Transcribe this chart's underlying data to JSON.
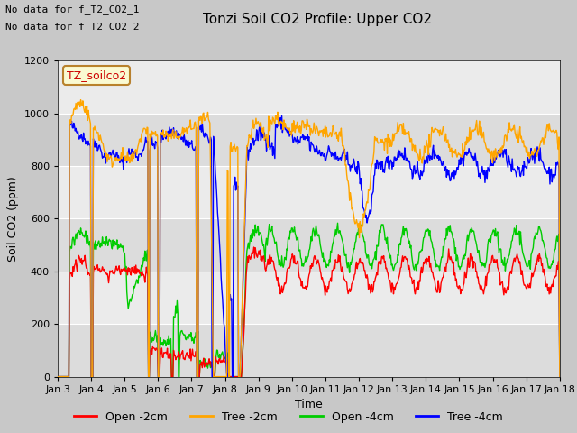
{
  "title": "Tonzi Soil CO2 Profile: Upper CO2",
  "xlabel": "Time",
  "ylabel": "Soil CO2 (ppm)",
  "ylim": [
    0,
    1200
  ],
  "legend_label": "TZ_soilco2",
  "no_data_text": [
    "No data for f_T2_CO2_1",
    "No data for f_T2_CO2_2"
  ],
  "series": {
    "open_2cm": {
      "label": "Open -2cm",
      "color": "#ff0000"
    },
    "tree_2cm": {
      "label": "Tree -2cm",
      "color": "#ffa500"
    },
    "open_4cm": {
      "label": "Open -4cm",
      "color": "#00cc00"
    },
    "tree_4cm": {
      "label": "Tree -4cm",
      "color": "#0000ff"
    }
  },
  "plot_bg_color": "#ebebeb",
  "alt_bg_color": "#dcdcdc",
  "grid_color": "#ffffff",
  "title_fontsize": 11,
  "axis_label_fontsize": 9,
  "tick_fontsize": 8
}
